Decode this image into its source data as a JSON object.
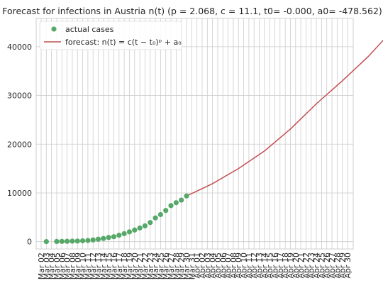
{
  "chart_data": {
    "type": "line",
    "title": "Forecast for infections in Austria n(t) (p = 2.068, c = 11.1, t0= -0.000, a0= -478.562)",
    "xlabel": "",
    "ylabel": "",
    "x_tick_labels": [
      "Mar 02",
      "Mar 03",
      "Mar 04",
      "Mar 05",
      "Mar 06",
      "Mar 07",
      "Mar 08",
      "Mar 09",
      "Mar 10",
      "Mar 11",
      "Mar 12",
      "Mar 13",
      "Mar 14",
      "Mar 15",
      "Mar 16",
      "Mar 17",
      "Mar 18",
      "Mar 19",
      "Mar 20",
      "Mar 21",
      "Mar 22",
      "Mar 23",
      "Mar 24",
      "Mar 25",
      "Mar 26",
      "Mar 27",
      "Mar 28",
      "Mar 29",
      "Mar 30",
      "Mar 31",
      "Apr 01",
      "Apr 02",
      "Apr 03",
      "Apr 04",
      "Apr 05",
      "Apr 06",
      "Apr 07",
      "Apr 08",
      "Apr 09",
      "Apr 10",
      "Apr 11",
      "Apr 12",
      "Apr 13",
      "Apr 14",
      "Apr 15",
      "Apr 16",
      "Apr 17",
      "Apr 18",
      "Apr 19",
      "Apr 20",
      "Apr 21",
      "Apr 22",
      "Apr 23",
      "Apr 24",
      "Apr 25",
      "Apr 26",
      "Apr 27",
      "Apr 28",
      "Apr 29",
      "Apr 30"
    ],
    "y_ticks": [
      0,
      10000,
      20000,
      30000,
      40000
    ],
    "ylim": [
      -1500,
      45800
    ],
    "grid": true,
    "legend_position": "top-left",
    "series": [
      {
        "name": "actual cases",
        "kind": "scatter",
        "color": "#55a868",
        "points": [
          {
            "x": "Mar 03",
            "y": 18
          },
          {
            "x": "Mar 05",
            "y": 41
          },
          {
            "x": "Mar 06",
            "y": 55
          },
          {
            "x": "Mar 07",
            "y": 79
          },
          {
            "x": "Mar 08",
            "y": 104
          },
          {
            "x": "Mar 09",
            "y": 131
          },
          {
            "x": "Mar 10",
            "y": 182
          },
          {
            "x": "Mar 11",
            "y": 246
          },
          {
            "x": "Mar 12",
            "y": 361
          },
          {
            "x": "Mar 13",
            "y": 504
          },
          {
            "x": "Mar 14",
            "y": 655
          },
          {
            "x": "Mar 15",
            "y": 860
          },
          {
            "x": "Mar 16",
            "y": 1018
          },
          {
            "x": "Mar 17",
            "y": 1332
          },
          {
            "x": "Mar 18",
            "y": 1646
          },
          {
            "x": "Mar 19",
            "y": 2013
          },
          {
            "x": "Mar 20",
            "y": 2388
          },
          {
            "x": "Mar 21",
            "y": 2814
          },
          {
            "x": "Mar 22",
            "y": 3244
          },
          {
            "x": "Mar 23",
            "y": 3924
          },
          {
            "x": "Mar 24",
            "y": 4876
          },
          {
            "x": "Mar 25",
            "y": 5560
          },
          {
            "x": "Mar 26",
            "y": 6398
          },
          {
            "x": "Mar 27",
            "y": 7399
          },
          {
            "x": "Mar 28",
            "y": 7995
          },
          {
            "x": "Mar 29",
            "y": 8536
          },
          {
            "x": "Mar 30",
            "y": 9377
          }
        ]
      },
      {
        "name": "forecast: n(t) = c(t − t₀)ᵖ + a₀",
        "kind": "line",
        "color": "#c44e52",
        "points": [
          {
            "x": "Mar 30",
            "y": 9377
          },
          {
            "x": "Apr 04",
            "y": 11900
          },
          {
            "x": "Apr 09",
            "y": 15000
          },
          {
            "x": "Apr 14",
            "y": 18600
          },
          {
            "x": "Apr 19",
            "y": 23100
          },
          {
            "x": "Apr 24",
            "y": 28300
          },
          {
            "x": "Apr 29",
            "y": 33000
          },
          {
            "x": "May 04",
            "y": 38000
          },
          {
            "x": "May 09",
            "y": 43800
          }
        ]
      }
    ]
  }
}
